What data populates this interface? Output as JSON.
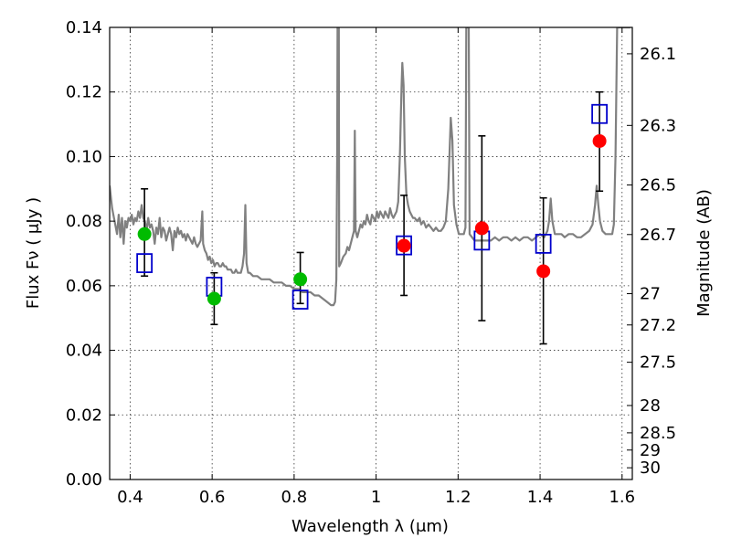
{
  "chart_data": {
    "type": "scatter",
    "xlabel": "Wavelength  λ (μm)",
    "ylabel": "Flux  Fν  ( μJy )",
    "y2label": "Magnitude (AB)",
    "xlim": [
      0.35,
      1.625
    ],
    "ylim": [
      0.0,
      0.14
    ],
    "grid": true,
    "x_ticks": [
      {
        "value": 0.4,
        "label": "0.4"
      },
      {
        "value": 0.6,
        "label": "0.6"
      },
      {
        "value": 0.8,
        "label": "0.8"
      },
      {
        "value": 1.0,
        "label": "1"
      },
      {
        "value": 1.2,
        "label": "1.2"
      },
      {
        "value": 1.4,
        "label": "1.4"
      },
      {
        "value": 1.6,
        "label": "1.6"
      }
    ],
    "y_ticks": [
      {
        "value": 0.0,
        "label": "0.00"
      },
      {
        "value": 0.02,
        "label": "0.02"
      },
      {
        "value": 0.04,
        "label": "0.04"
      },
      {
        "value": 0.06,
        "label": "0.06"
      },
      {
        "value": 0.08,
        "label": "0.08"
      },
      {
        "value": 0.1,
        "label": "0.10"
      },
      {
        "value": 0.12,
        "label": "0.12"
      },
      {
        "value": 0.14,
        "label": "0.14"
      }
    ],
    "y2_ticks": [
      {
        "label": "26.1",
        "mag": 26.1
      },
      {
        "label": "26.3",
        "mag": 26.3
      },
      {
        "label": "26.5",
        "mag": 26.5
      },
      {
        "label": "26.7",
        "mag": 26.7
      },
      {
        "label": "27",
        "mag": 27.0
      },
      {
        "label": "27.2",
        "mag": 27.2
      },
      {
        "label": "27.5",
        "mag": 27.5
      },
      {
        "label": "28",
        "mag": 28.0
      },
      {
        "label": "28.5",
        "mag": 28.5
      },
      {
        "label": "29",
        "mag": 29.0
      },
      {
        "label": "30",
        "mag": 30.0
      }
    ],
    "series": [
      {
        "kind": "spectrum",
        "color": "#808080",
        "points": [
          [
            0.35,
            0.091
          ],
          [
            0.356,
            0.084
          ],
          [
            0.362,
            0.08
          ],
          [
            0.368,
            0.076
          ],
          [
            0.372,
            0.082
          ],
          [
            0.376,
            0.075
          ],
          [
            0.38,
            0.081
          ],
          [
            0.384,
            0.073
          ],
          [
            0.388,
            0.08
          ],
          [
            0.392,
            0.078
          ],
          [
            0.396,
            0.081
          ],
          [
            0.4,
            0.08
          ],
          [
            0.404,
            0.082
          ],
          [
            0.408,
            0.079
          ],
          [
            0.412,
            0.081
          ],
          [
            0.416,
            0.08
          ],
          [
            0.42,
            0.083
          ],
          [
            0.424,
            0.081
          ],
          [
            0.428,
            0.085
          ],
          [
            0.432,
            0.081
          ],
          [
            0.436,
            0.08
          ],
          [
            0.44,
            0.077
          ],
          [
            0.444,
            0.081
          ],
          [
            0.448,
            0.078
          ],
          [
            0.452,
            0.079
          ],
          [
            0.456,
            0.077
          ],
          [
            0.46,
            0.073
          ],
          [
            0.464,
            0.078
          ],
          [
            0.468,
            0.076
          ],
          [
            0.472,
            0.081
          ],
          [
            0.476,
            0.075
          ],
          [
            0.48,
            0.078
          ],
          [
            0.484,
            0.077
          ],
          [
            0.488,
            0.074
          ],
          [
            0.492,
            0.076
          ],
          [
            0.496,
            0.078
          ],
          [
            0.5,
            0.076
          ],
          [
            0.504,
            0.071
          ],
          [
            0.508,
            0.077
          ],
          [
            0.512,
            0.075
          ],
          [
            0.516,
            0.078
          ],
          [
            0.52,
            0.076
          ],
          [
            0.524,
            0.077
          ],
          [
            0.528,
            0.075
          ],
          [
            0.532,
            0.076
          ],
          [
            0.536,
            0.074
          ],
          [
            0.54,
            0.076
          ],
          [
            0.544,
            0.075
          ],
          [
            0.548,
            0.074
          ],
          [
            0.552,
            0.073
          ],
          [
            0.556,
            0.075
          ],
          [
            0.56,
            0.073
          ],
          [
            0.564,
            0.072
          ],
          [
            0.568,
            0.073
          ],
          [
            0.572,
            0.074
          ],
          [
            0.576,
            0.083
          ],
          [
            0.578,
            0.073
          ],
          [
            0.582,
            0.071
          ],
          [
            0.586,
            0.07
          ],
          [
            0.59,
            0.068
          ],
          [
            0.594,
            0.069
          ],
          [
            0.598,
            0.067
          ],
          [
            0.602,
            0.068
          ],
          [
            0.606,
            0.066
          ],
          [
            0.61,
            0.067
          ],
          [
            0.614,
            0.067
          ],
          [
            0.618,
            0.066
          ],
          [
            0.622,
            0.066
          ],
          [
            0.626,
            0.067
          ],
          [
            0.63,
            0.066
          ],
          [
            0.634,
            0.066
          ],
          [
            0.638,
            0.065
          ],
          [
            0.642,
            0.065
          ],
          [
            0.646,
            0.065
          ],
          [
            0.65,
            0.064
          ],
          [
            0.654,
            0.064
          ],
          [
            0.658,
            0.065
          ],
          [
            0.662,
            0.064
          ],
          [
            0.666,
            0.064
          ],
          [
            0.67,
            0.064
          ],
          [
            0.674,
            0.066
          ],
          [
            0.678,
            0.07
          ],
          [
            0.681,
            0.085
          ],
          [
            0.684,
            0.067
          ],
          [
            0.688,
            0.064
          ],
          [
            0.692,
            0.064
          ],
          [
            0.7,
            0.063
          ],
          [
            0.71,
            0.063
          ],
          [
            0.72,
            0.062
          ],
          [
            0.73,
            0.062
          ],
          [
            0.74,
            0.062
          ],
          [
            0.75,
            0.061
          ],
          [
            0.76,
            0.061
          ],
          [
            0.77,
            0.061
          ],
          [
            0.78,
            0.06
          ],
          [
            0.79,
            0.06
          ],
          [
            0.8,
            0.059
          ],
          [
            0.81,
            0.059
          ],
          [
            0.82,
            0.058
          ],
          [
            0.83,
            0.058
          ],
          [
            0.84,
            0.058
          ],
          [
            0.85,
            0.057
          ],
          [
            0.86,
            0.057
          ],
          [
            0.87,
            0.056
          ],
          [
            0.88,
            0.055
          ],
          [
            0.89,
            0.054
          ],
          [
            0.896,
            0.054
          ],
          [
            0.9,
            0.055
          ],
          [
            0.903,
            0.062
          ],
          [
            0.905,
            0.1
          ],
          [
            0.906,
            0.14
          ],
          [
            0.909,
            0.14
          ],
          [
            0.91,
            0.066
          ],
          [
            0.914,
            0.067
          ],
          [
            0.92,
            0.069
          ],
          [
            0.926,
            0.07
          ],
          [
            0.93,
            0.072
          ],
          [
            0.934,
            0.071
          ],
          [
            0.938,
            0.073
          ],
          [
            0.942,
            0.075
          ],
          [
            0.946,
            0.077
          ],
          [
            0.948,
            0.108
          ],
          [
            0.95,
            0.077
          ],
          [
            0.954,
            0.075
          ],
          [
            0.958,
            0.077
          ],
          [
            0.962,
            0.079
          ],
          [
            0.966,
            0.078
          ],
          [
            0.97,
            0.08
          ],
          [
            0.974,
            0.079
          ],
          [
            0.978,
            0.082
          ],
          [
            0.982,
            0.08
          ],
          [
            0.986,
            0.079
          ],
          [
            0.99,
            0.082
          ],
          [
            0.994,
            0.081
          ],
          [
            0.998,
            0.08
          ],
          [
            1.002,
            0.083
          ],
          [
            1.006,
            0.081
          ],
          [
            1.01,
            0.083
          ],
          [
            1.014,
            0.082
          ],
          [
            1.018,
            0.081
          ],
          [
            1.022,
            0.083
          ],
          [
            1.026,
            0.082
          ],
          [
            1.03,
            0.081
          ],
          [
            1.034,
            0.084
          ],
          [
            1.038,
            0.082
          ],
          [
            1.042,
            0.081
          ],
          [
            1.046,
            0.082
          ],
          [
            1.05,
            0.083
          ],
          [
            1.054,
            0.086
          ],
          [
            1.058,
            0.1
          ],
          [
            1.062,
            0.121
          ],
          [
            1.064,
            0.129
          ],
          [
            1.067,
            0.122
          ],
          [
            1.07,
            0.1
          ],
          [
            1.074,
            0.088
          ],
          [
            1.078,
            0.085
          ],
          [
            1.082,
            0.083
          ],
          [
            1.086,
            0.082
          ],
          [
            1.09,
            0.081
          ],
          [
            1.094,
            0.081
          ],
          [
            1.1,
            0.08
          ],
          [
            1.106,
            0.081
          ],
          [
            1.11,
            0.079
          ],
          [
            1.116,
            0.08
          ],
          [
            1.122,
            0.078
          ],
          [
            1.128,
            0.079
          ],
          [
            1.134,
            0.078
          ],
          [
            1.14,
            0.077
          ],
          [
            1.146,
            0.078
          ],
          [
            1.152,
            0.077
          ],
          [
            1.158,
            0.077
          ],
          [
            1.164,
            0.078
          ],
          [
            1.17,
            0.08
          ],
          [
            1.176,
            0.09
          ],
          [
            1.182,
            0.112
          ],
          [
            1.186,
            0.105
          ],
          [
            1.19,
            0.085
          ],
          [
            1.196,
            0.079
          ],
          [
            1.202,
            0.076
          ],
          [
            1.208,
            0.076
          ],
          [
            1.214,
            0.076
          ],
          [
            1.218,
            0.078
          ],
          [
            1.22,
            0.14
          ],
          [
            1.226,
            0.14
          ],
          [
            1.228,
            0.076
          ],
          [
            1.234,
            0.075
          ],
          [
            1.24,
            0.074
          ],
          [
            1.25,
            0.074
          ],
          [
            1.26,
            0.074
          ],
          [
            1.27,
            0.074
          ],
          [
            1.28,
            0.074
          ],
          [
            1.29,
            0.075
          ],
          [
            1.3,
            0.074
          ],
          [
            1.31,
            0.075
          ],
          [
            1.32,
            0.075
          ],
          [
            1.33,
            0.074
          ],
          [
            1.34,
            0.075
          ],
          [
            1.35,
            0.074
          ],
          [
            1.36,
            0.075
          ],
          [
            1.37,
            0.075
          ],
          [
            1.38,
            0.074
          ],
          [
            1.39,
            0.075
          ],
          [
            1.4,
            0.076
          ],
          [
            1.41,
            0.075
          ],
          [
            1.418,
            0.077
          ],
          [
            1.422,
            0.08
          ],
          [
            1.426,
            0.087
          ],
          [
            1.43,
            0.08
          ],
          [
            1.436,
            0.076
          ],
          [
            1.444,
            0.076
          ],
          [
            1.452,
            0.076
          ],
          [
            1.46,
            0.075
          ],
          [
            1.47,
            0.076
          ],
          [
            1.48,
            0.076
          ],
          [
            1.49,
            0.075
          ],
          [
            1.5,
            0.075
          ],
          [
            1.51,
            0.076
          ],
          [
            1.52,
            0.077
          ],
          [
            1.528,
            0.079
          ],
          [
            1.534,
            0.085
          ],
          [
            1.538,
            0.091
          ],
          [
            1.542,
            0.085
          ],
          [
            1.546,
            0.08
          ],
          [
            1.552,
            0.077
          ],
          [
            1.56,
            0.076
          ],
          [
            1.568,
            0.076
          ],
          [
            1.576,
            0.076
          ],
          [
            1.58,
            0.079
          ],
          [
            1.584,
            0.1
          ],
          [
            1.588,
            0.14
          ],
          [
            1.6,
            0.14
          ],
          [
            1.61,
            0.14
          ],
          [
            1.616,
            0.14
          ],
          [
            1.62,
            0.14
          ]
        ]
      },
      {
        "kind": "observed",
        "points": [
          {
            "x": 0.435,
            "y": 0.076,
            "err": [
              0.063,
              0.09
            ],
            "color": "#00bb00"
          },
          {
            "x": 0.605,
            "y": 0.056,
            "err": [
              0.048,
              0.064
            ],
            "color": "#00bb00"
          },
          {
            "x": 0.815,
            "y": 0.062,
            "err": [
              0.0545,
              0.0703
            ],
            "color": "#00bb00"
          },
          {
            "x": 1.068,
            "y": 0.0724,
            "err": [
              0.057,
              0.088
            ],
            "color": "#ff0000"
          },
          {
            "x": 1.258,
            "y": 0.0778,
            "err": [
              0.0492,
              0.1064
            ],
            "color": "#ff0000"
          },
          {
            "x": 1.408,
            "y": 0.0645,
            "err": [
              0.042,
              0.0872
            ],
            "color": "#ff0000"
          },
          {
            "x": 1.545,
            "y": 0.1048,
            "err": [
              0.0893,
              0.12
            ],
            "color": "#ff0000"
          }
        ]
      },
      {
        "kind": "model",
        "marker": "open-square",
        "color": "#0000cc",
        "points": [
          {
            "x": 0.435,
            "y": 0.067
          },
          {
            "x": 0.605,
            "y": 0.0597
          },
          {
            "x": 0.815,
            "y": 0.0557
          },
          {
            "x": 1.068,
            "y": 0.0725
          },
          {
            "x": 1.258,
            "y": 0.074
          },
          {
            "x": 1.408,
            "y": 0.073
          },
          {
            "x": 1.545,
            "y": 0.1132
          }
        ]
      }
    ]
  }
}
